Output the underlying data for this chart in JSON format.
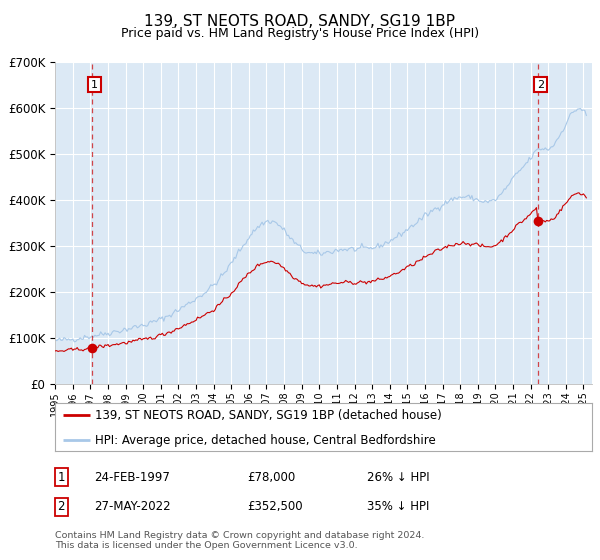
{
  "title": "139, ST NEOTS ROAD, SANDY, SG19 1BP",
  "subtitle": "Price paid vs. HM Land Registry's House Price Index (HPI)",
  "ylim": [
    0,
    700000
  ],
  "xlim_start": 1995.0,
  "xlim_end": 2025.5,
  "background_color": "#dce9f5",
  "grid_color": "#ffffff",
  "hpi_color": "#a8c8e8",
  "price_color": "#cc0000",
  "purchase1_x": 1997.12,
  "purchase1_y": 78000,
  "purchase1_label": "1",
  "purchase1_date": "24-FEB-1997",
  "purchase1_price": "£78,000",
  "purchase1_hpi": "26% ↓ HPI",
  "purchase2_x": 2022.38,
  "purchase2_y": 352500,
  "purchase2_label": "2",
  "purchase2_date": "27-MAY-2022",
  "purchase2_price": "£352,500",
  "purchase2_hpi": "35% ↓ HPI",
  "legend_line1": "139, ST NEOTS ROAD, SANDY, SG19 1BP (detached house)",
  "legend_line2": "HPI: Average price, detached house, Central Bedfordshire",
  "footer": "Contains HM Land Registry data © Crown copyright and database right 2024.\nThis data is licensed under the Open Government Licence v3.0.",
  "yticks": [
    0,
    100000,
    200000,
    300000,
    400000,
    500000,
    600000,
    700000
  ],
  "ytick_labels": [
    "£0",
    "£100K",
    "£200K",
    "£300K",
    "£400K",
    "£500K",
    "£600K",
    "£700K"
  ]
}
